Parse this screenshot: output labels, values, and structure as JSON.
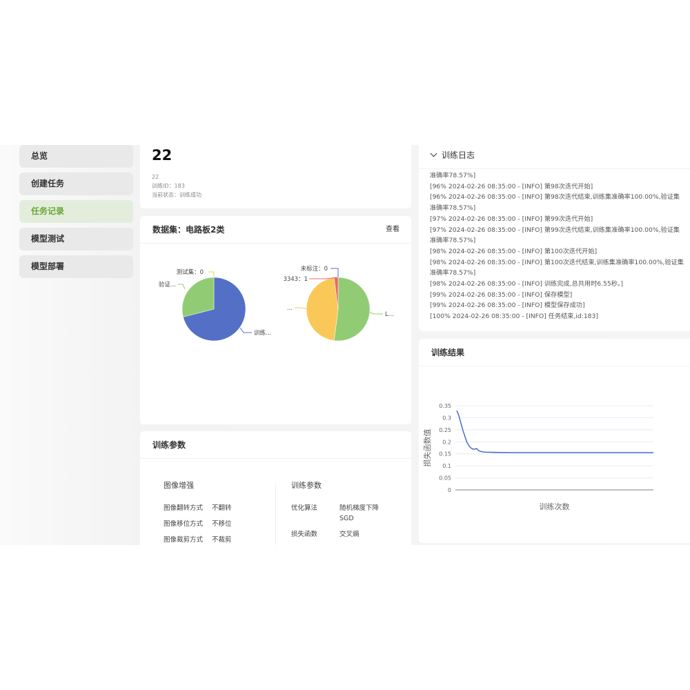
{
  "sidebar": {
    "items": [
      {
        "label": "总览"
      },
      {
        "label": "创建任务"
      },
      {
        "label": "任务记录",
        "active": true
      },
      {
        "label": "模型测试"
      },
      {
        "label": "模型部署"
      }
    ]
  },
  "task": {
    "title": "22",
    "name": "22",
    "id_line": "训练ID：183",
    "status_line": "当前状态：训练成功"
  },
  "dataset": {
    "title": "数据集：电路板2类",
    "view_link": "查看",
    "pie_left": {
      "slices": [
        {
          "label": "训练...",
          "value": 71,
          "color": "#5470c6"
        },
        {
          "label": "验证...",
          "value": 29,
          "color": "#91cc75"
        },
        {
          "label": "测试集：0",
          "value": 0,
          "color": "#fac858"
        }
      ]
    },
    "pie_right": {
      "slices": [
        {
          "label": "L...",
          "value": 52,
          "color": "#91cc75"
        },
        {
          "label": "...",
          "value": 46,
          "color": "#fac858"
        },
        {
          "label": "3343：1",
          "value": 2,
          "color": "#ee6666"
        },
        {
          "label": "未标注：0",
          "value": 0,
          "color": "#5470c6"
        }
      ]
    }
  },
  "params": {
    "title": "训练参数",
    "aug": {
      "title": "图像增强",
      "rows": [
        {
          "k": "图像翻转方式",
          "v": "不翻转"
        },
        {
          "k": "图像移位方式",
          "v": "不移位"
        },
        {
          "k": "图像裁剪方式",
          "v": "不裁剪"
        }
      ]
    },
    "train": {
      "title": "训练参数",
      "rows": [
        {
          "k": "优化算法",
          "v": "随机梯度下降SGD"
        },
        {
          "k": "损失函数",
          "v": "交叉熵"
        }
      ]
    }
  },
  "log": {
    "title": "训练日志",
    "chevron": "chevron-down-icon",
    "lines": [
      "准确率78.57%]",
      "[96% 2024-02-26 08:35:00 - [INFO] 第98次迭代开始]",
      "[96% 2024-02-26 08:35:00 - [INFO] 第98次迭代结束,训练集准确率100.00%,验证集准确率78.57%]",
      "[97% 2024-02-26 08:35:00 - [INFO] 第99次迭代开始]",
      "[97% 2024-02-26 08:35:00 - [INFO] 第99次迭代结束,训练集准确率100.00%,验证集准确率78.57%]",
      "[98% 2024-02-26 08:35:00 - [INFO] 第100次迭代开始]",
      "[98% 2024-02-26 08:35:00 - [INFO] 第100次迭代结束,训练集准确率100.00%,验证集准确率78.57%]",
      "[98% 2024-02-26 08:35:00 - [INFO] 训练完成,总共用时6.55秒。]",
      "[99% 2024-02-26 08:35:00 - [INFO] 保存模型]",
      "[99% 2024-02-26 08:35:00 - [INFO] 模型保存成功]",
      "[100% 2024-02-26 08:35:00 - [INFO] 任务结束,id:183]"
    ]
  },
  "result": {
    "title": "训练结果"
  },
  "chart_data": {
    "type": "line",
    "xlabel": "训练次数",
    "ylabel": "损失函数值",
    "ylim": [
      0,
      0.35
    ],
    "yticks": [
      "0",
      "0.05",
      "0.1",
      "0.15",
      "0.2",
      "0.25",
      "0.3",
      "0.35"
    ],
    "color": "#3f5fc8",
    "x": [
      1,
      2,
      3,
      4,
      5,
      6,
      7,
      8,
      9,
      10,
      11,
      12,
      13,
      14,
      16,
      20,
      30,
      50,
      100
    ],
    "y": [
      0.33,
      0.31,
      0.28,
      0.25,
      0.225,
      0.2,
      0.185,
      0.175,
      0.17,
      0.169,
      0.172,
      0.163,
      0.16,
      0.158,
      0.157,
      0.156,
      0.155,
      0.155,
      0.155
    ]
  }
}
